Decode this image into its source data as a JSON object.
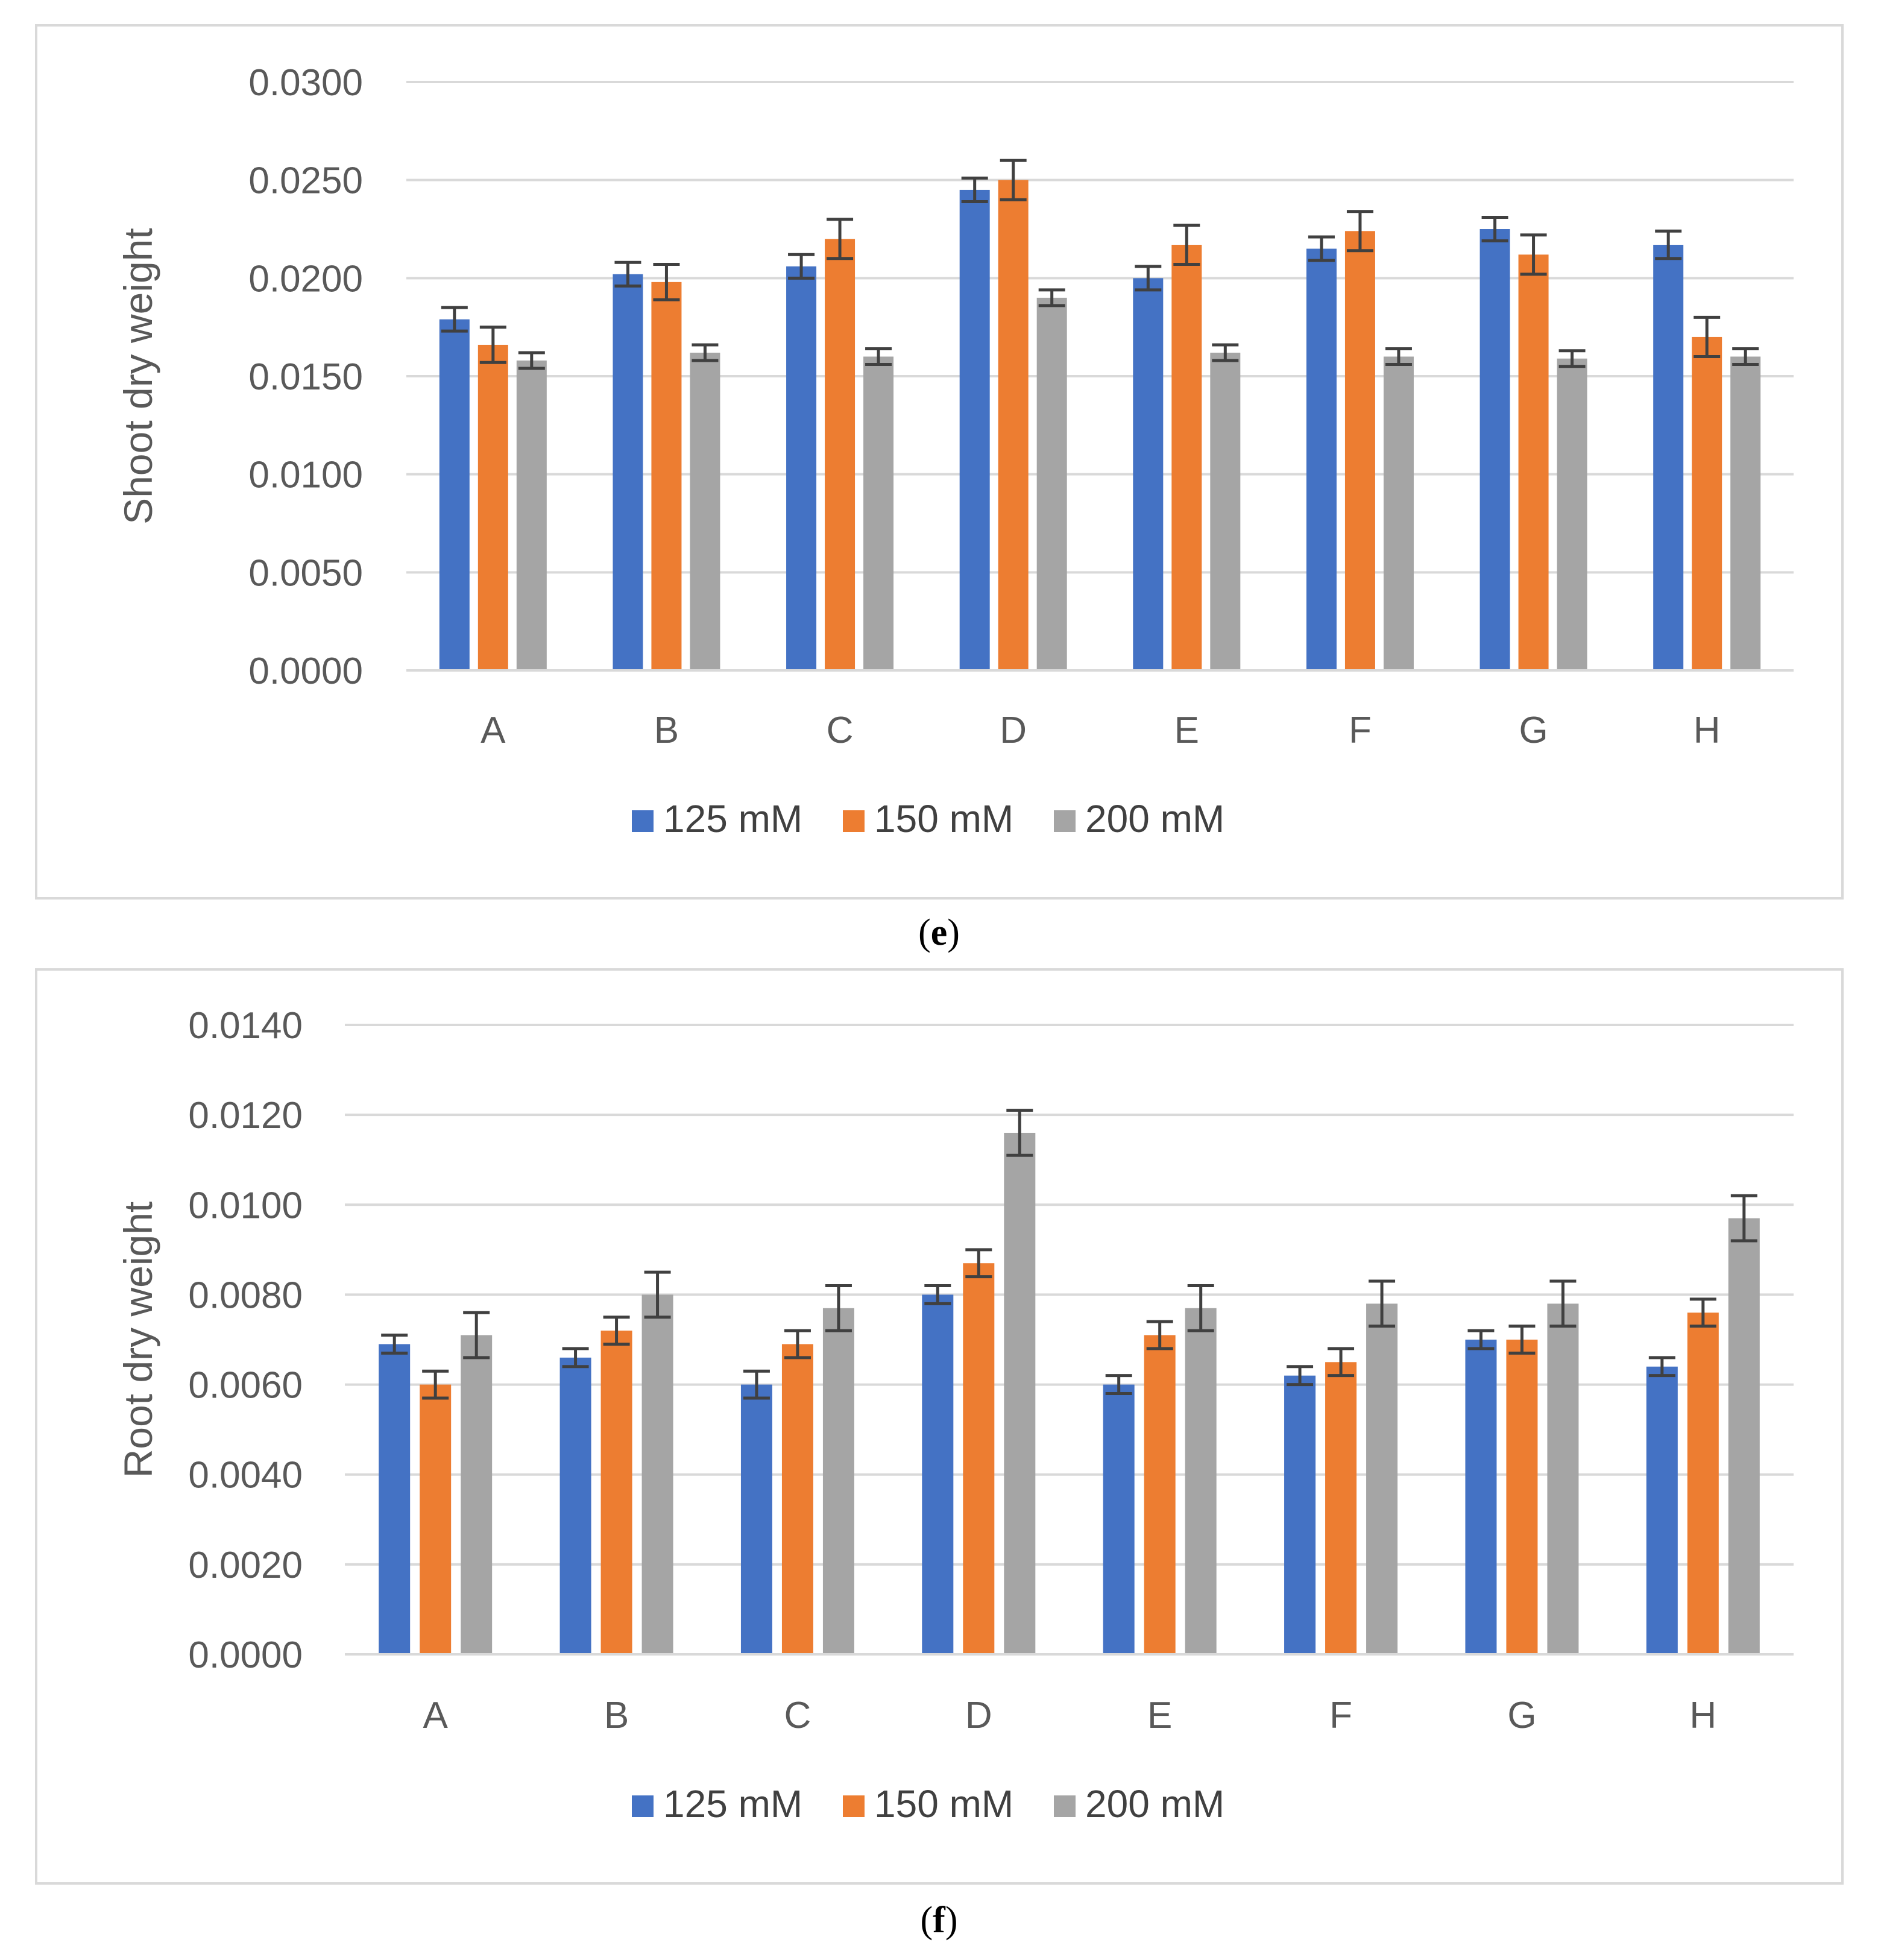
{
  "chart_data": [
    {
      "type": "bar",
      "panel_label": "e",
      "ylabel": "Shoot dry weight",
      "xlabel": "",
      "ylim": [
        0,
        0.03
      ],
      "yticks": [
        "0.0000",
        "0.0050",
        "0.0100",
        "0.0150",
        "0.0200",
        "0.0250",
        "0.0300"
      ],
      "ytick_values": [
        0,
        0.005,
        0.01,
        0.015,
        0.02,
        0.025,
        0.03
      ],
      "grid": true,
      "legend_position": "bottom",
      "categories": [
        "A",
        "B",
        "C",
        "D",
        "E",
        "F",
        "G",
        "H"
      ],
      "series": [
        {
          "name": "125 mM",
          "color": "#4472C4",
          "values": [
            0.0179,
            0.0202,
            0.0206,
            0.0245,
            0.02,
            0.0215,
            0.0225,
            0.0217
          ],
          "errors": [
            0.0006,
            0.0006,
            0.0006,
            0.0006,
            0.0006,
            0.0006,
            0.0006,
            0.0007
          ]
        },
        {
          "name": "150 mM",
          "color": "#ED7D31",
          "values": [
            0.0166,
            0.0198,
            0.022,
            0.025,
            0.0217,
            0.0224,
            0.0212,
            0.017
          ],
          "errors": [
            0.0009,
            0.0009,
            0.001,
            0.001,
            0.001,
            0.001,
            0.001,
            0.001
          ]
        },
        {
          "name": "200 mM",
          "color": "#A5A5A5",
          "values": [
            0.0158,
            0.0162,
            0.016,
            0.019,
            0.0162,
            0.016,
            0.0159,
            0.016
          ],
          "errors": [
            0.0004,
            0.0004,
            0.0004,
            0.0004,
            0.0004,
            0.0004,
            0.0004,
            0.0004
          ]
        }
      ]
    },
    {
      "type": "bar",
      "panel_label": "f",
      "ylabel": "Root dry weight",
      "xlabel": "",
      "ylim": [
        0,
        0.014
      ],
      "yticks": [
        "0.0000",
        "0.0020",
        "0.0040",
        "0.0060",
        "0.0080",
        "0.0100",
        "0.0120",
        "0.0140"
      ],
      "ytick_values": [
        0,
        0.002,
        0.004,
        0.006,
        0.008,
        0.01,
        0.012,
        0.014
      ],
      "grid": true,
      "legend_position": "bottom",
      "categories": [
        "A",
        "B",
        "C",
        "D",
        "E",
        "F",
        "G",
        "H"
      ],
      "series": [
        {
          "name": "125 mM",
          "color": "#4472C4",
          "values": [
            0.0069,
            0.0066,
            0.006,
            0.008,
            0.006,
            0.0062,
            0.007,
            0.0064
          ],
          "errors": [
            0.0002,
            0.0002,
            0.0003,
            0.0002,
            0.0002,
            0.0002,
            0.0002,
            0.0002
          ]
        },
        {
          "name": "150 mM",
          "color": "#ED7D31",
          "values": [
            0.006,
            0.0072,
            0.0069,
            0.0087,
            0.0071,
            0.0065,
            0.007,
            0.0076
          ],
          "errors": [
            0.0003,
            0.0003,
            0.0003,
            0.0003,
            0.0003,
            0.0003,
            0.0003,
            0.0003
          ]
        },
        {
          "name": "200 mM",
          "color": "#A5A5A5",
          "values": [
            0.0071,
            0.008,
            0.0077,
            0.0116,
            0.0077,
            0.0078,
            0.0078,
            0.0097
          ],
          "errors": [
            0.0005,
            0.0005,
            0.0005,
            0.0005,
            0.0005,
            0.0005,
            0.0005,
            0.0005
          ]
        }
      ]
    }
  ],
  "captions": {
    "e": "e",
    "f": "f"
  }
}
